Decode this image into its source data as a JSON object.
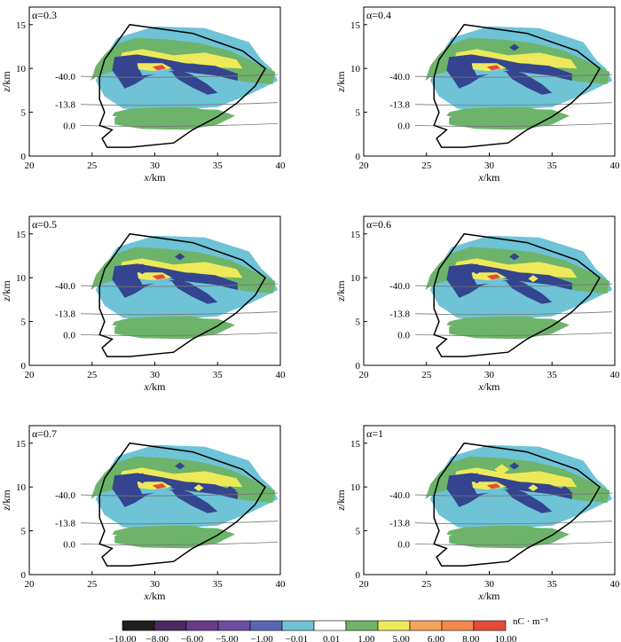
{
  "chart_data": {
    "type": "contour",
    "shared": {
      "xlabel_var": "x",
      "xlabel_unit": "/km",
      "ylabel_var": "z",
      "ylabel_unit": "/km",
      "xlim": [
        20,
        40
      ],
      "ylim": [
        0,
        17
      ],
      "xticks": [
        20,
        25,
        30,
        35,
        40
      ],
      "yticks": [
        0,
        5,
        10,
        15
      ],
      "isotherms": [
        {
          "label": "-40.0",
          "z": 9.1
        },
        {
          "label": "-13.8",
          "z": 5.9
        },
        {
          "label": "0.0",
          "z": 3.5
        }
      ]
    },
    "panels": [
      {
        "label": "α=0.3"
      },
      {
        "label": "α=0.4"
      },
      {
        "label": "α=0.5"
      },
      {
        "label": "α=0.6"
      },
      {
        "label": "α=0.7"
      },
      {
        "label": "α=1"
      }
    ],
    "colorbar": {
      "unit": "nC · m⁻³",
      "ticks": [
        "−10.00",
        "−8.00",
        "−6.00",
        "−5.00",
        "−1.00",
        "−0.01",
        "0.01",
        "1.00",
        "5.00",
        "6.00",
        "8.00",
        "10.00"
      ],
      "colors": [
        "#1e1e1e",
        "#4a2a5e",
        "#6b3a8a",
        "#6a4fa0",
        "#5a66b4",
        "#6ec3d6",
        "#ffffff",
        "#6db36a",
        "#eee95a",
        "#f6a45a",
        "#f2884a",
        "#e84a3a"
      ]
    }
  },
  "colors": {
    "negative_deep": "#34448e",
    "negative_light": "#6ec3d6",
    "positive_light": "#6db36a",
    "positive_mid": "#eee95a",
    "positive_high": "#e84a3a"
  }
}
